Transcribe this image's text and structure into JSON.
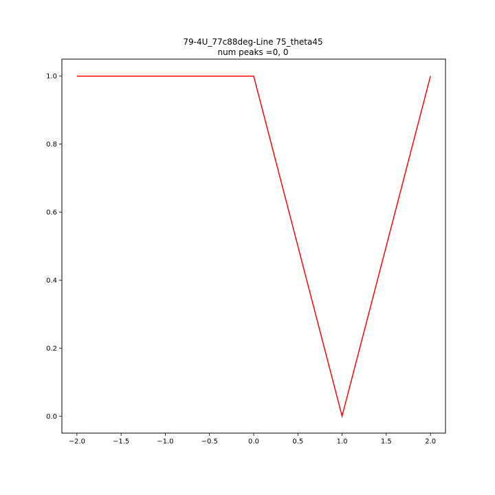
{
  "chart_data": {
    "type": "line",
    "title_lines": [
      "79-4U_77c88deg-Line 75_theta45",
      "num peaks =0, 0"
    ],
    "xlabel": "",
    "ylabel": "",
    "xlim": [
      -2.17,
      2.17
    ],
    "ylim": [
      -0.05,
      1.05
    ],
    "xticks": [
      -2.0,
      -1.5,
      -1.0,
      -0.5,
      0.0,
      0.5,
      1.0,
      1.5,
      2.0
    ],
    "xtick_labels": [
      "−2.0",
      "−1.5",
      "−1.0",
      "−0.5",
      "0.0",
      "0.5",
      "1.0",
      "1.5",
      "2.0"
    ],
    "yticks": [
      0.0,
      0.2,
      0.4,
      0.6,
      0.8,
      1.0
    ],
    "ytick_labels": [
      "0.0",
      "0.2",
      "0.4",
      "0.6",
      "0.8",
      "1.0"
    ],
    "grid": false,
    "legend": "none",
    "series": [
      {
        "color": "#ff0000",
        "x": [
          -2.0,
          0.0,
          1.0,
          2.0
        ],
        "y": [
          1.0,
          1.0,
          0.0,
          1.0
        ]
      }
    ]
  }
}
